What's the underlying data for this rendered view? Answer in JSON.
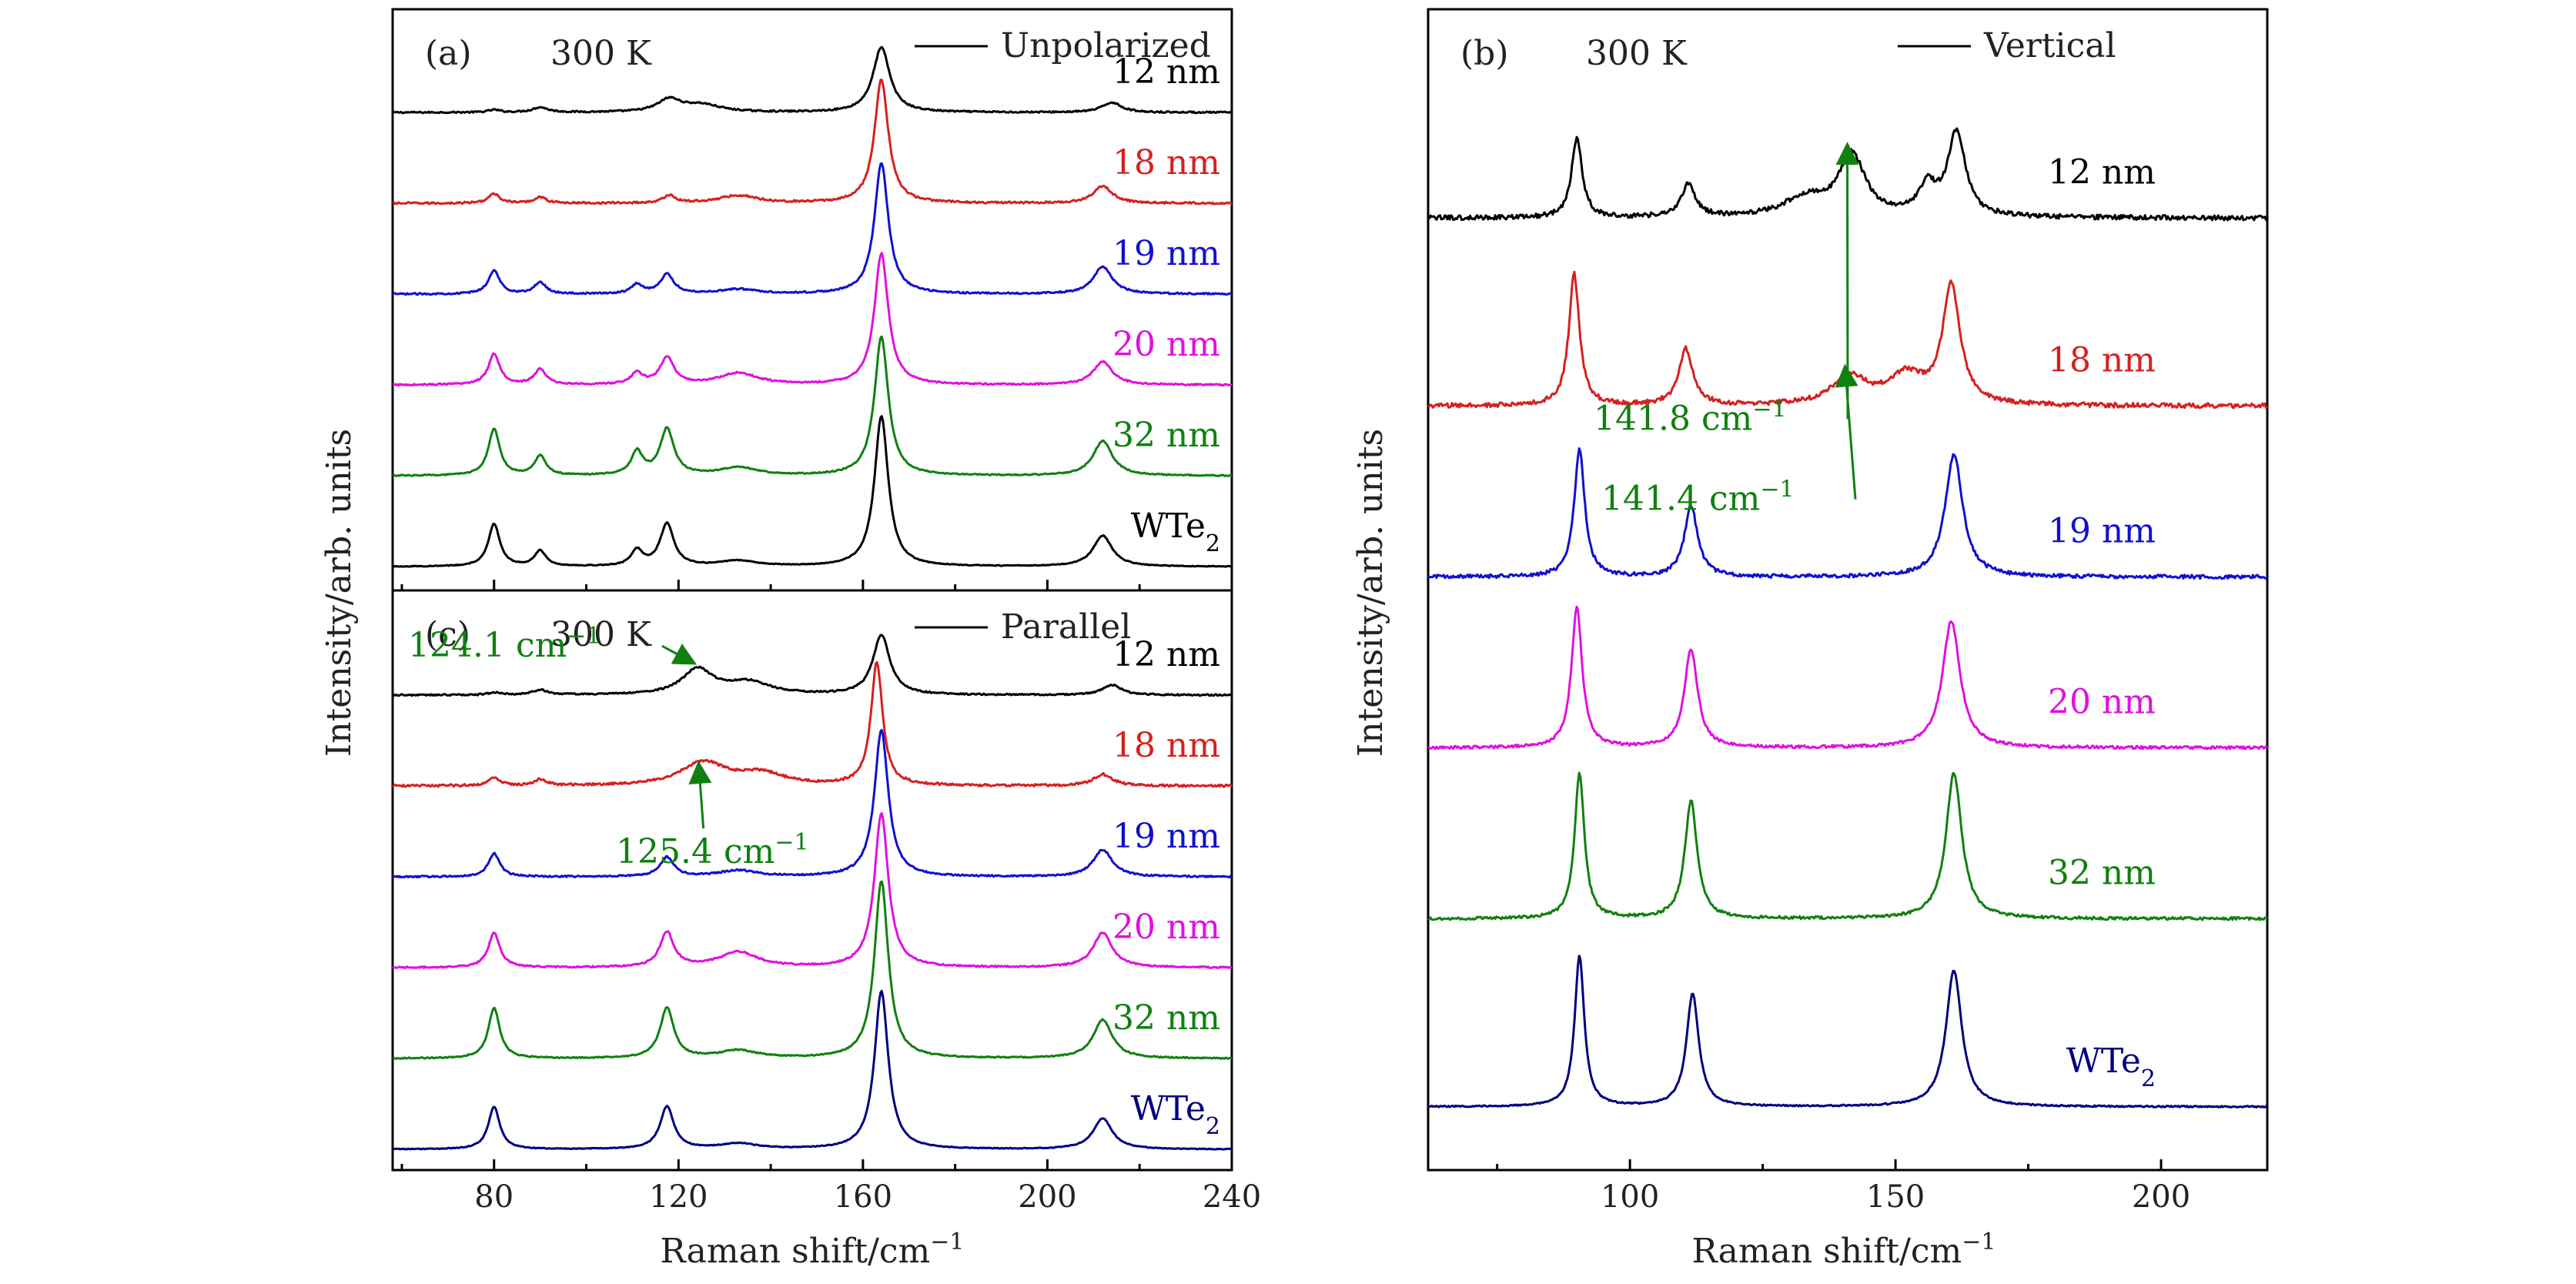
{
  "figure": {
    "ylabel": "Intensity/arb. units",
    "xlabel": "Raman shift/cm",
    "xlabel_sup": "−1"
  },
  "colors": {
    "12 nm": "#000000",
    "18 nm": "#d62020",
    "19 nm": "#1010d0",
    "20 nm": "#e010e0",
    "32 nm": "#108010",
    "WTe2_a": "#000000",
    "WTe2_b": "#000080",
    "annotation": "#108010"
  },
  "chart_data": [
    {
      "id": "a",
      "type": "line",
      "panel_label": "(a)",
      "temperature": "300 K",
      "legend": "Unpolarized",
      "xlim": [
        58,
        240
      ],
      "xticks": [
        80,
        120,
        160,
        200,
        240
      ],
      "show_ticklabels": false,
      "series": [
        {
          "name": "12 nm",
          "label_text": "12 nm",
          "color": "#000000",
          "offset": 5.1,
          "amp": 0.55,
          "noise": 0.03,
          "peaks": [
            [
              80,
              1.5,
              0.05
            ],
            [
              90,
              2,
              0.1
            ],
            [
              118,
              3,
              0.25
            ],
            [
              125,
              5,
              0.15
            ],
            [
              164,
              2.2,
              1.3
            ],
            [
              214,
              2.5,
              0.2
            ]
          ]
        },
        {
          "name": "18 nm",
          "label_text": "18 nm",
          "color": "#d62020",
          "offset": 4.1,
          "amp": 0.85,
          "noise": 0.025,
          "peaks": [
            [
              80,
              1.5,
              0.12
            ],
            [
              90,
              1.5,
              0.08
            ],
            [
              118,
              1.5,
              0.1
            ],
            [
              133,
              5,
              0.1
            ],
            [
              164,
              1.8,
              1.6
            ],
            [
              212,
              2.5,
              0.22
            ]
          ]
        },
        {
          "name": "19 nm",
          "label_text": "19 nm",
          "color": "#1010d0",
          "offset": 3.1,
          "amp": 0.85,
          "noise": 0.02,
          "peaks": [
            [
              80,
              1.5,
              0.3
            ],
            [
              90,
              1.5,
              0.15
            ],
            [
              111,
              1.5,
              0.12
            ],
            [
              117.5,
              1.8,
              0.25
            ],
            [
              133,
              5,
              0.06
            ],
            [
              164,
              1.8,
              1.7
            ],
            [
              212,
              2.5,
              0.35
            ]
          ]
        },
        {
          "name": "20 nm",
          "label_text": "20 nm",
          "color": "#e010e0",
          "offset": 2.1,
          "amp": 0.85,
          "noise": 0.02,
          "peaks": [
            [
              80,
              1.5,
              0.4
            ],
            [
              90,
              1.5,
              0.2
            ],
            [
              111,
              1.5,
              0.15
            ],
            [
              117.5,
              1.8,
              0.35
            ],
            [
              133,
              5,
              0.15
            ],
            [
              164,
              1.8,
              1.7
            ],
            [
              212,
              2.5,
              0.3
            ]
          ]
        },
        {
          "name": "32 nm",
          "label_text": "32 nm",
          "color": "#108010",
          "offset": 1.1,
          "amp": 0.85,
          "noise": 0.015,
          "peaks": [
            [
              80,
              1.5,
              0.6
            ],
            [
              90,
              1.5,
              0.25
            ],
            [
              111,
              1.5,
              0.3
            ],
            [
              117.5,
              1.8,
              0.6
            ],
            [
              133,
              5,
              0.1
            ],
            [
              164,
              1.8,
              1.8
            ],
            [
              212,
              2.5,
              0.45
            ]
          ]
        },
        {
          "name": "WTe2",
          "label_text": "WTe",
          "label_sub": "2",
          "color": "#000000",
          "offset": 0.1,
          "amp": 0.85,
          "noise": 0.01,
          "peaks": [
            [
              80,
              1.5,
              0.55
            ],
            [
              90,
              1.5,
              0.2
            ],
            [
              111,
              1.5,
              0.2
            ],
            [
              117.5,
              1.8,
              0.55
            ],
            [
              133,
              5,
              0.07
            ],
            [
              164,
              1.8,
              1.95
            ],
            [
              212,
              2.5,
              0.4
            ]
          ]
        }
      ],
      "annotations": []
    },
    {
      "id": "c",
      "type": "line",
      "panel_label": "(c)",
      "temperature": "300 K",
      "legend": "Parallel",
      "xlim": [
        58,
        240
      ],
      "xticks": [
        80,
        120,
        160,
        200,
        240
      ],
      "show_ticklabels": true,
      "series": [
        {
          "name": "12 nm",
          "label_text": "12 nm",
          "color": "#000000",
          "offset": 5.1,
          "amp": 0.55,
          "noise": 0.03,
          "peaks": [
            [
              80,
              1.5,
              0.05
            ],
            [
              90,
              2,
              0.1
            ],
            [
              124.1,
              4,
              0.5
            ],
            [
              135,
              6,
              0.25
            ],
            [
              164,
              2.2,
              1.2
            ],
            [
              214,
              2.5,
              0.2
            ]
          ]
        },
        {
          "name": "18 nm",
          "label_text": "18 nm",
          "color": "#d62020",
          "offset": 4.1,
          "amp": 0.85,
          "noise": 0.03,
          "peaks": [
            [
              80,
              1.5,
              0.1
            ],
            [
              90,
              1.5,
              0.08
            ],
            [
              125.4,
              6,
              0.3
            ],
            [
              138,
              6,
              0.15
            ],
            [
              163,
              1.5,
              1.6
            ],
            [
              212,
              2.5,
              0.15
            ]
          ]
        },
        {
          "name": "19 nm",
          "label_text": "19 nm",
          "color": "#1010d0",
          "offset": 3.1,
          "amp": 0.85,
          "noise": 0.02,
          "peaks": [
            [
              80,
              1.5,
              0.3
            ],
            [
              117.5,
              1.8,
              0.25
            ],
            [
              133,
              5,
              0.08
            ],
            [
              164,
              1.8,
              1.9
            ],
            [
              212,
              2.5,
              0.35
            ]
          ]
        },
        {
          "name": "20 nm",
          "label_text": "20 nm",
          "color": "#e010e0",
          "offset": 2.1,
          "amp": 0.85,
          "noise": 0.02,
          "peaks": [
            [
              80,
              1.5,
              0.45
            ],
            [
              117.5,
              1.8,
              0.45
            ],
            [
              133,
              5,
              0.2
            ],
            [
              164,
              1.8,
              2.0
            ],
            [
              212,
              2.5,
              0.45
            ]
          ]
        },
        {
          "name": "32 nm",
          "label_text": "32 nm",
          "color": "#108010",
          "offset": 1.1,
          "amp": 0.85,
          "noise": 0.015,
          "peaks": [
            [
              80,
              1.5,
              0.65
            ],
            [
              117.5,
              1.8,
              0.65
            ],
            [
              133,
              5,
              0.1
            ],
            [
              164,
              1.8,
              2.3
            ],
            [
              212,
              2.5,
              0.5
            ]
          ]
        },
        {
          "name": "WTe2",
          "label_text": "WTe",
          "label_sub": "2",
          "color": "#000080",
          "offset": 0.1,
          "amp": 0.85,
          "noise": 0.01,
          "peaks": [
            [
              80,
              1.5,
              0.55
            ],
            [
              117.5,
              1.8,
              0.55
            ],
            [
              133,
              5,
              0.07
            ],
            [
              164,
              1.8,
              2.05
            ],
            [
              212,
              2.5,
              0.4
            ]
          ]
        }
      ],
      "annotations": [
        {
          "text": "124.1 cm",
          "sup": "−1",
          "series": "12 nm",
          "x": 124.1
        },
        {
          "text": "125.4 cm",
          "sup": "−1",
          "series": "18 nm",
          "x": 125.4
        }
      ]
    },
    {
      "id": "b",
      "type": "line",
      "panel_label": "(b)",
      "temperature": "300 K",
      "legend": "Vertical",
      "xlim": [
        62,
        220
      ],
      "xticks": [
        100,
        150,
        200
      ],
      "show_ticklabels": true,
      "series": [
        {
          "name": "12 nm",
          "label_text": "12 nm",
          "color": "#000000",
          "offset": 5.3,
          "amp": 0.55,
          "noise": 0.05,
          "peaks": [
            [
              90,
              1.2,
              0.85
            ],
            [
              111,
              1.6,
              0.35
            ],
            [
              141.8,
              3.0,
              0.65
            ],
            [
              133,
              5,
              0.2
            ],
            [
              156,
              2,
              0.3
            ],
            [
              161.5,
              2.0,
              0.9
            ]
          ]
        },
        {
          "name": "18 nm",
          "label_text": "18 nm",
          "color": "#d62020",
          "offset": 4.2,
          "amp": 0.55,
          "noise": 0.05,
          "peaks": [
            [
              89.5,
              1.2,
              1.4
            ],
            [
              110.5,
              1.6,
              0.6
            ],
            [
              141.4,
              4,
              0.3
            ],
            [
              152,
              4,
              0.3
            ],
            [
              160.5,
              2.0,
              1.25
            ]
          ]
        },
        {
          "name": "19 nm",
          "label_text": "19 nm",
          "color": "#1010d0",
          "offset": 3.2,
          "amp": 0.55,
          "noise": 0.04,
          "peaks": [
            [
              90.5,
              1.2,
              1.35
            ],
            [
              111.5,
              1.5,
              0.75
            ],
            [
              161,
              2.0,
              1.3
            ]
          ]
        },
        {
          "name": "20 nm",
          "label_text": "20 nm",
          "color": "#e010e0",
          "offset": 2.2,
          "amp": 0.55,
          "noise": 0.03,
          "peaks": [
            [
              90,
              1.2,
              1.5
            ],
            [
              111.5,
              1.5,
              1.05
            ],
            [
              160.5,
              2.0,
              1.35
            ]
          ]
        },
        {
          "name": "32 nm",
          "label_text": "32 nm",
          "color": "#108010",
          "offset": 1.2,
          "amp": 0.55,
          "noise": 0.03,
          "peaks": [
            [
              90.5,
              1.1,
              1.55
            ],
            [
              111.5,
              1.4,
              1.25
            ],
            [
              161,
              1.8,
              1.55
            ]
          ]
        },
        {
          "name": "WTe2",
          "label_text": "WTe",
          "label_sub": "2",
          "color": "#000080",
          "offset": 0.1,
          "amp": 0.55,
          "noise": 0.015,
          "peaks": [
            [
              90.5,
              1.1,
              1.6
            ],
            [
              111.8,
              1.4,
              1.2
            ],
            [
              161,
              1.8,
              1.45
            ]
          ]
        }
      ],
      "annotations": [
        {
          "text": "141.8 cm",
          "sup": "−1",
          "series": "12 nm",
          "x": 141.8
        },
        {
          "text": "141.4 cm",
          "sup": "−1",
          "series": "18 nm",
          "x": 141.4
        }
      ]
    }
  ]
}
